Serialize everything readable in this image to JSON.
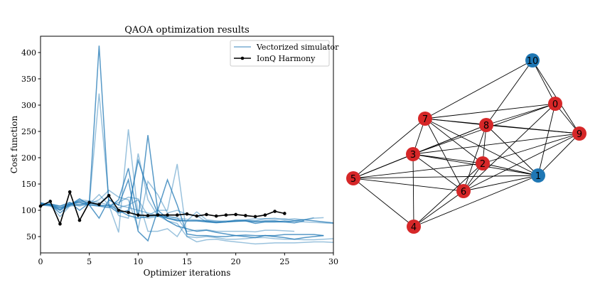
{
  "chart_data": {
    "type": "line",
    "title": "QAOA optimization results",
    "xlabel": "Optimizer iterations",
    "ylabel": "Cost function",
    "xlim": [
      0,
      30
    ],
    "ylim": [
      19,
      431
    ],
    "xticks": [
      0,
      5,
      10,
      15,
      20,
      25,
      30
    ],
    "yticks": [
      50,
      100,
      150,
      200,
      250,
      300,
      350,
      400
    ],
    "grid": false,
    "legend_position": "top-right",
    "legend": [
      "Vectorized simulator",
      "IonQ Harmony"
    ],
    "colors": {
      "simulator": "#1f77b4",
      "ionq": "#000000"
    },
    "simulator_runs": [
      [
        112,
        110,
        105,
        112,
        118,
        115,
        413,
        110,
        100,
        90,
        85,
        88,
        90,
        85,
        82,
        80,
        80,
        78,
        77,
        78,
        79,
        80,
        78,
        80,
        80,
        78,
        80,
        82,
        80,
        78,
        76
      ],
      [
        110,
        112,
        100,
        110,
        112,
        113,
        322,
        120,
        110,
        105,
        100,
        95,
        90,
        88,
        85,
        83,
        82,
        80,
        79,
        80,
        80,
        81,
        80,
        78,
        78,
        80,
        79,
        78,
        77,
        76,
        75
      ],
      [
        115,
        110,
        88,
        108,
        120,
        118,
        115,
        110,
        58,
        254,
        90,
        85,
        88,
        88,
        86,
        60,
        62,
        63,
        60,
        60,
        60,
        60,
        59,
        62,
        62,
        61,
        60
      ],
      [
        112,
        110,
        95,
        110,
        122,
        110,
        108,
        105,
        120,
        180,
        85,
        243,
        100,
        85,
        80,
        80,
        80,
        80,
        77,
        78,
        80,
        80,
        75,
        78,
        78,
        78,
        76,
        80
      ],
      [
        110,
        108,
        100,
        115,
        110,
        115,
        112,
        130,
        90,
        85,
        208,
        120,
        90,
        80,
        75,
        50,
        48,
        50,
        48,
        45,
        45,
        46,
        48,
        48,
        46,
        45,
        45,
        44,
        44,
        45,
        46
      ],
      [
        113,
        112,
        105,
        108,
        110,
        112,
        108,
        110,
        105,
        110,
        120,
        90,
        100,
        100,
        188,
        50,
        40,
        44,
        45,
        42,
        40,
        38,
        36,
        37,
        38,
        38,
        38,
        39,
        40,
        40,
        39
      ],
      [
        114,
        110,
        102,
        112,
        115,
        110,
        85,
        120,
        110,
        158,
        60,
        42,
        100,
        158,
        110,
        55,
        52,
        52,
        50,
        50,
        52,
        53,
        52,
        52,
        52,
        54,
        54,
        54,
        54,
        52
      ],
      [
        108,
        112,
        108,
        112,
        116,
        112,
        130,
        110,
        115,
        125,
        122,
        60,
        60,
        65,
        50,
        80,
        97,
        82,
        80,
        78,
        82,
        82,
        84,
        84,
        85,
        82,
        84,
        82,
        85,
        86
      ],
      [
        111,
        109,
        100,
        112,
        108,
        112,
        120,
        138,
        125,
        120,
        65,
        155,
        130,
        95,
        100,
        92,
        90,
        78,
        76,
        78,
        80,
        80,
        80,
        84,
        83,
        84,
        81,
        82,
        86
      ],
      [
        110,
        112,
        108,
        115,
        100,
        114,
        110,
        108,
        95,
        100,
        195,
        140,
        95,
        80,
        70,
        65,
        60,
        62,
        58,
        55,
        52,
        50,
        48,
        52,
        50,
        48,
        45,
        48,
        50,
        52
      ]
    ],
    "ionq_harmony": {
      "x": [
        0,
        1,
        2,
        3,
        4,
        5,
        6,
        7,
        8,
        9,
        10,
        11,
        12,
        13,
        14,
        15,
        16,
        17,
        18,
        19,
        20,
        21,
        22,
        23,
        24,
        25
      ],
      "y": [
        108,
        117,
        74,
        135,
        81,
        115,
        111,
        128,
        100,
        96,
        91,
        90,
        91,
        91,
        91,
        93,
        89,
        92,
        89,
        91,
        92,
        90,
        88,
        91,
        98,
        94
      ]
    }
  },
  "graph": {
    "nodes": [
      {
        "id": "0",
        "group": "red"
      },
      {
        "id": "1",
        "group": "blue"
      },
      {
        "id": "2",
        "group": "red"
      },
      {
        "id": "3",
        "group": "red"
      },
      {
        "id": "4",
        "group": "red"
      },
      {
        "id": "5",
        "group": "red"
      },
      {
        "id": "6",
        "group": "red"
      },
      {
        "id": "7",
        "group": "red"
      },
      {
        "id": "8",
        "group": "red"
      },
      {
        "id": "9",
        "group": "red"
      },
      {
        "id": "10",
        "group": "blue"
      }
    ],
    "edges": [
      [
        "10",
        "7"
      ],
      [
        "10",
        "8"
      ],
      [
        "10",
        "0"
      ],
      [
        "10",
        "9"
      ],
      [
        "0",
        "7"
      ],
      [
        "0",
        "8"
      ],
      [
        "0",
        "3"
      ],
      [
        "0",
        "9"
      ],
      [
        "0",
        "6"
      ],
      [
        "0",
        "1"
      ],
      [
        "7",
        "8"
      ],
      [
        "7",
        "9"
      ],
      [
        "7",
        "3"
      ],
      [
        "7",
        "5"
      ],
      [
        "7",
        "6"
      ],
      [
        "7",
        "2"
      ],
      [
        "7",
        "1"
      ],
      [
        "8",
        "3"
      ],
      [
        "8",
        "9"
      ],
      [
        "8",
        "2"
      ],
      [
        "8",
        "6"
      ],
      [
        "8",
        "1"
      ],
      [
        "8",
        "5"
      ],
      [
        "9",
        "3"
      ],
      [
        "9",
        "2"
      ],
      [
        "9",
        "6"
      ],
      [
        "9",
        "1"
      ],
      [
        "3",
        "5"
      ],
      [
        "3",
        "2"
      ],
      [
        "3",
        "1"
      ],
      [
        "3",
        "6"
      ],
      [
        "3",
        "4"
      ],
      [
        "2",
        "5"
      ],
      [
        "2",
        "1"
      ],
      [
        "2",
        "4"
      ],
      [
        "2",
        "6"
      ],
      [
        "5",
        "1"
      ],
      [
        "5",
        "6"
      ],
      [
        "5",
        "4"
      ],
      [
        "6",
        "1"
      ],
      [
        "6",
        "4"
      ],
      [
        "4",
        "1"
      ]
    ],
    "colors": {
      "red": "#d62728",
      "blue": "#1f77b4",
      "edge": "#000000"
    }
  }
}
